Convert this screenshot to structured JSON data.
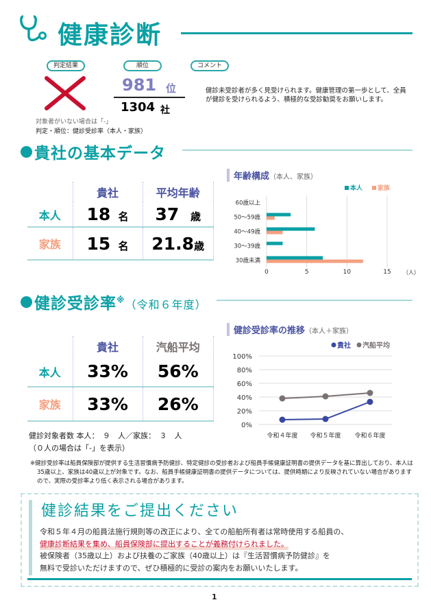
{
  "header": {
    "title": "健康診断"
  },
  "summary": {
    "judgement_label": "判定結果",
    "rank_label": "順位",
    "comment_label": "コメント",
    "judgement": "×",
    "rank": "981",
    "rank_unit": "位",
    "total": "1304",
    "total_unit": "社",
    "note1": "対象者がいない場合は「-」",
    "note2": "判定・順位：健診受診率（本人・家族）",
    "comment": "健診未受診者が多く見受けられます。健康管理の第一歩として、全員が健診を受けられるよう、積極的な受診勧奨をお願いします。"
  },
  "basic": {
    "title": "貴社の基本データ",
    "columns": [
      "貴社",
      "平均年齢"
    ],
    "rows": [
      {
        "label": "本人",
        "count": "18",
        "count_unit": "名",
        "age": "37",
        "age_unit": "歳"
      },
      {
        "label": "家族",
        "count": "15",
        "count_unit": "名",
        "age": "21.8",
        "age_unit": "歳"
      }
    ]
  },
  "rate": {
    "title": "健診受診率",
    "mark": "※",
    "suffix": "（令和６年度）",
    "columns": [
      "貴社",
      "汽船平均"
    ],
    "rows": [
      {
        "label": "本人",
        "company": "33%",
        "average": "56%"
      },
      {
        "label": "家族",
        "company": "33%",
        "average": "26%"
      }
    ],
    "targets": "健診対象者数 本人：　９　人／家族：　３　人",
    "targets_note": "（０人の場合は「-」を表示）",
    "footnote": "※健診受診率は船員保険部が提供する生活習慣病予防健診、特定健診の受診者および船員手帳健康証明書の提供データを基に算出しており、本人は35歳以上、家族は40歳以上が対象です。なお、船員手帳健康証明書の提供データについては、提供時期により反映されていない場合がありますので、実際の受診率より低く表示される場合があります。"
  },
  "notice": {
    "title": "健診結果をご提出ください",
    "line1": "令和５年４月の船員法施行規則等の改正により、全ての船舶所有者は常時使用する船員の、",
    "line2": "健康診断結果を集め、船員保険部に提出することが義務付けられました。",
    "line3": "被保険者（35歳以上）および扶養のご家族（40歳以上）は『生活習慣病予防健診』を",
    "line4": "無料で受診いただけますので、ぜひ積極的に受診の案内をお願いいたします。"
  },
  "page_number": "1",
  "colors": {
    "teal": "#0aa0a4",
    "salmon": "#f4a07f",
    "navy": "#3848a0",
    "gray": "#7a7272",
    "red": "#c8102e"
  },
  "chart_data": [
    {
      "type": "bar",
      "orientation": "horizontal",
      "title": "年齢構成",
      "subtitle": "（本人、家族）",
      "categories": [
        "60歳以上",
        "50～59歳",
        "40～49歳",
        "30～39歳",
        "30歳未満"
      ],
      "series": [
        {
          "name": "本人",
          "values": [
            0,
            3,
            6,
            2,
            7
          ]
        },
        {
          "name": "家族",
          "values": [
            0,
            1,
            2,
            0,
            12
          ]
        }
      ],
      "xlim": [
        0,
        15
      ],
      "xticks": [
        "0",
        "5",
        "10",
        "15"
      ],
      "xunit": "（人）",
      "grid": true,
      "legend": "top-right"
    },
    {
      "type": "line",
      "title": "健診受診率の推移",
      "subtitle": "（本人＋家族）",
      "categories": [
        "令和４年度",
        "令和５年度",
        "令和６年度"
      ],
      "series": [
        {
          "name": "貴社",
          "values": [
            7,
            8,
            33
          ]
        },
        {
          "name": "汽船平均",
          "values": [
            38,
            41,
            46
          ]
        }
      ],
      "ylim": [
        0,
        100
      ],
      "yticks": [
        "0%",
        "20%",
        "40%",
        "60%",
        "80%",
        "100%"
      ],
      "grid": true,
      "legend": "top-right"
    }
  ]
}
